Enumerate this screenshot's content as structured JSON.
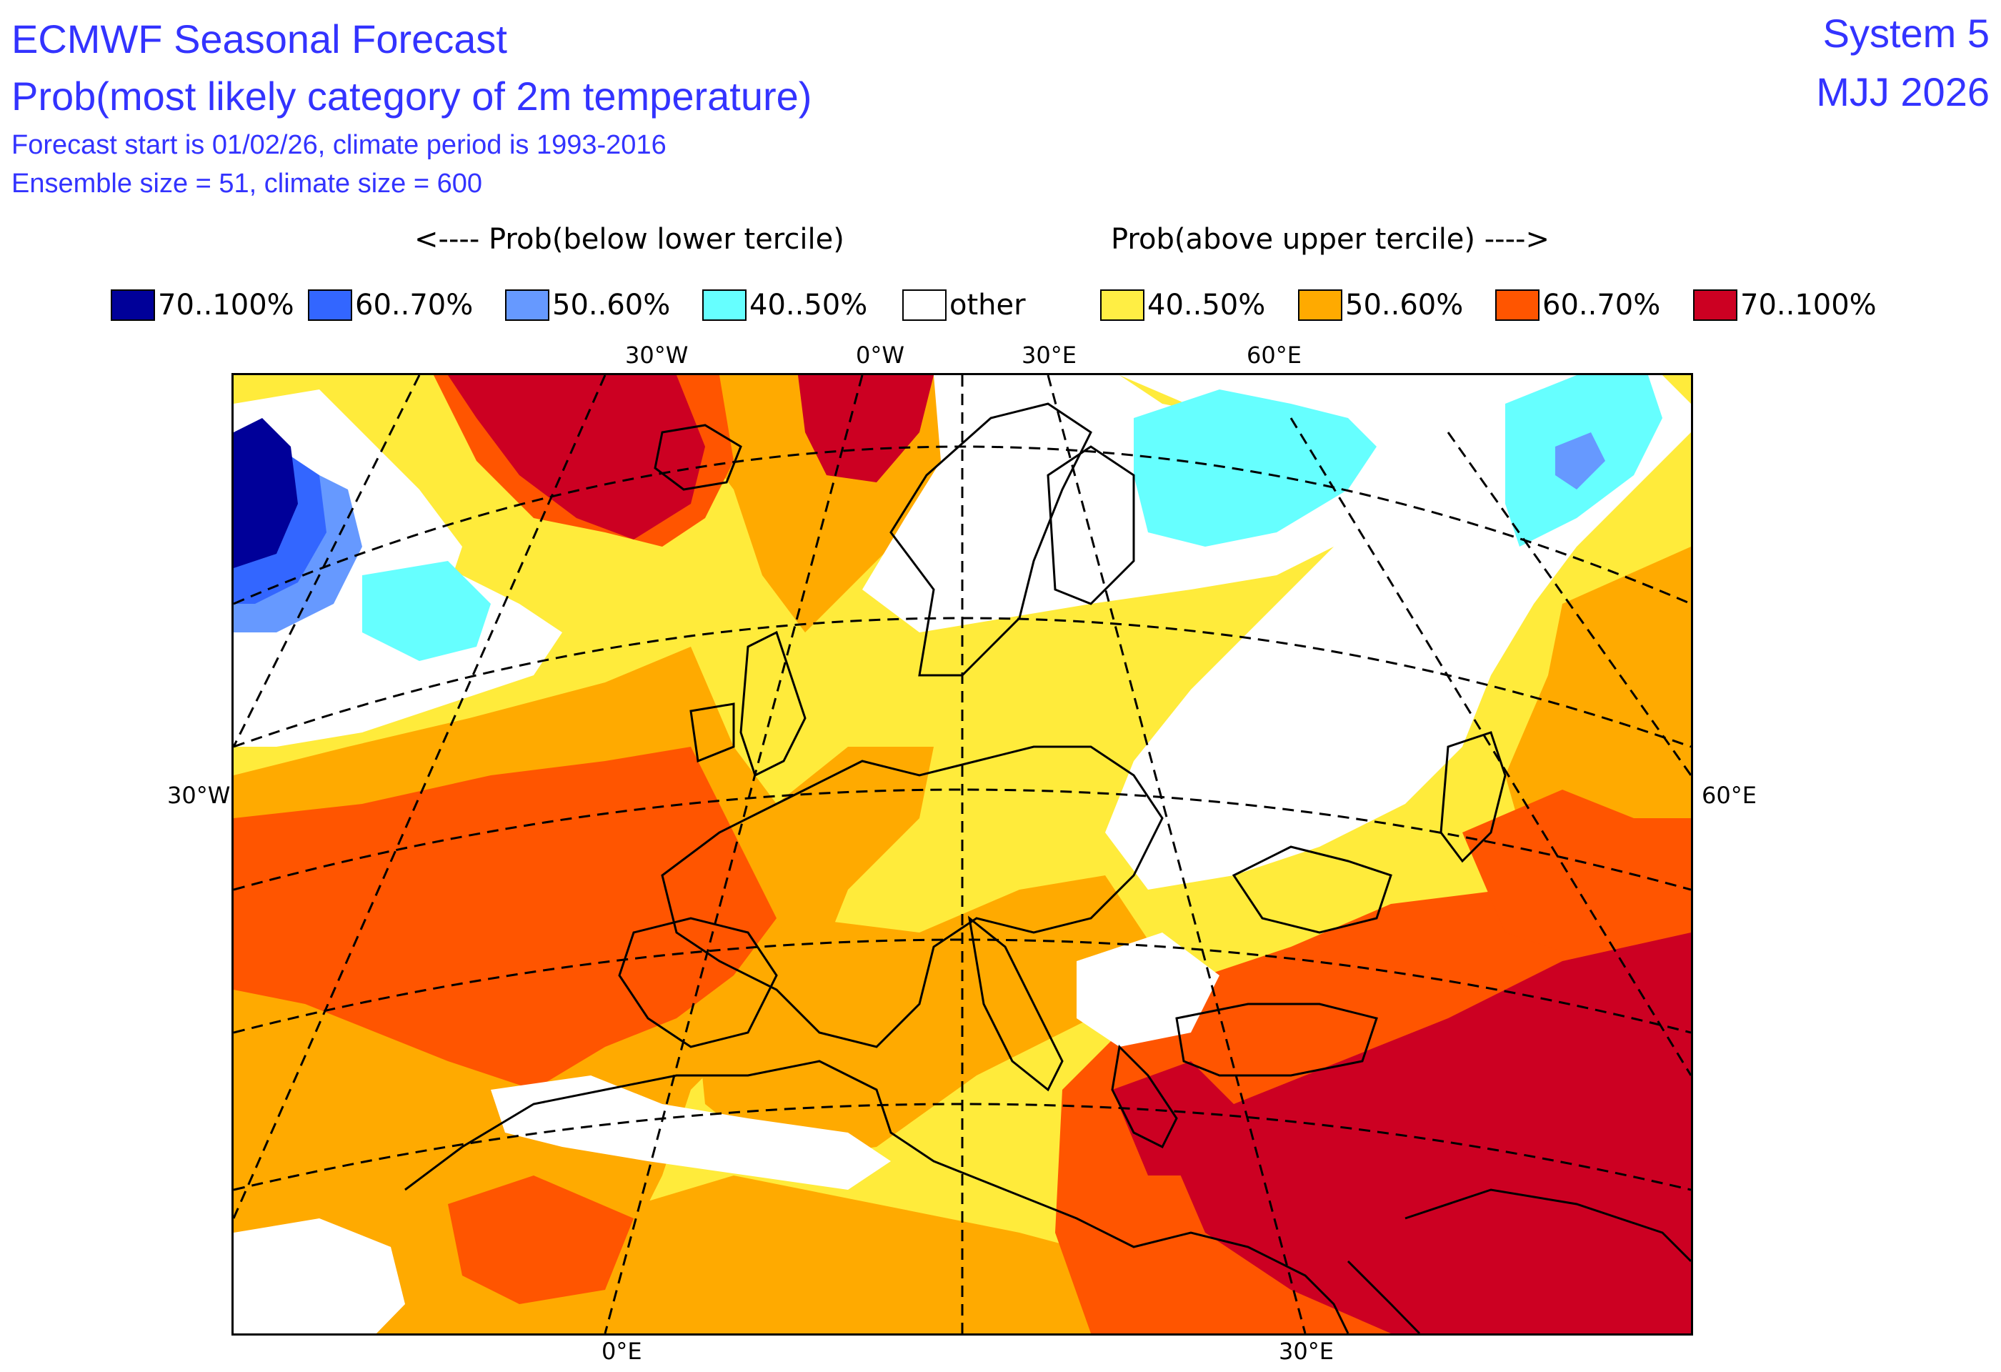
{
  "header": {
    "title": "ECMWF Seasonal Forecast",
    "subtitle": "Prob(most likely category of 2m temperature)",
    "forecast_info": "Forecast start is 01/02/26, climate period is 1993-2016",
    "ensemble_info": "Ensemble size = 51, climate size = 600",
    "system": "System 5",
    "period": "MJJ 2026"
  },
  "legend": {
    "left_heading": "<---- Prob(below lower tercile)",
    "right_heading": "Prob(above upper tercile) ---->",
    "items": [
      {
        "label": "70..100%",
        "color": "#000099"
      },
      {
        "label": "60..70%",
        "color": "#3366ff"
      },
      {
        "label": "50..60%",
        "color": "#6699ff"
      },
      {
        "label": "40..50%",
        "color": "#66ffff"
      },
      {
        "label": "other",
        "color": "#ffffff"
      },
      {
        "label": "40..50%",
        "color": "#ffee44"
      },
      {
        "label": "50..60%",
        "color": "#ffaa00"
      },
      {
        "label": "60..70%",
        "color": "#ff5500"
      },
      {
        "label": "70..100%",
        "color": "#cc0022"
      }
    ]
  },
  "map": {
    "top_labels": [
      "30°W",
      "0°W",
      "30°E",
      "60°E"
    ],
    "left_label": "30°W",
    "right_label": "60°E",
    "bottom_labels": [
      "0°E",
      "30°E"
    ]
  }
}
